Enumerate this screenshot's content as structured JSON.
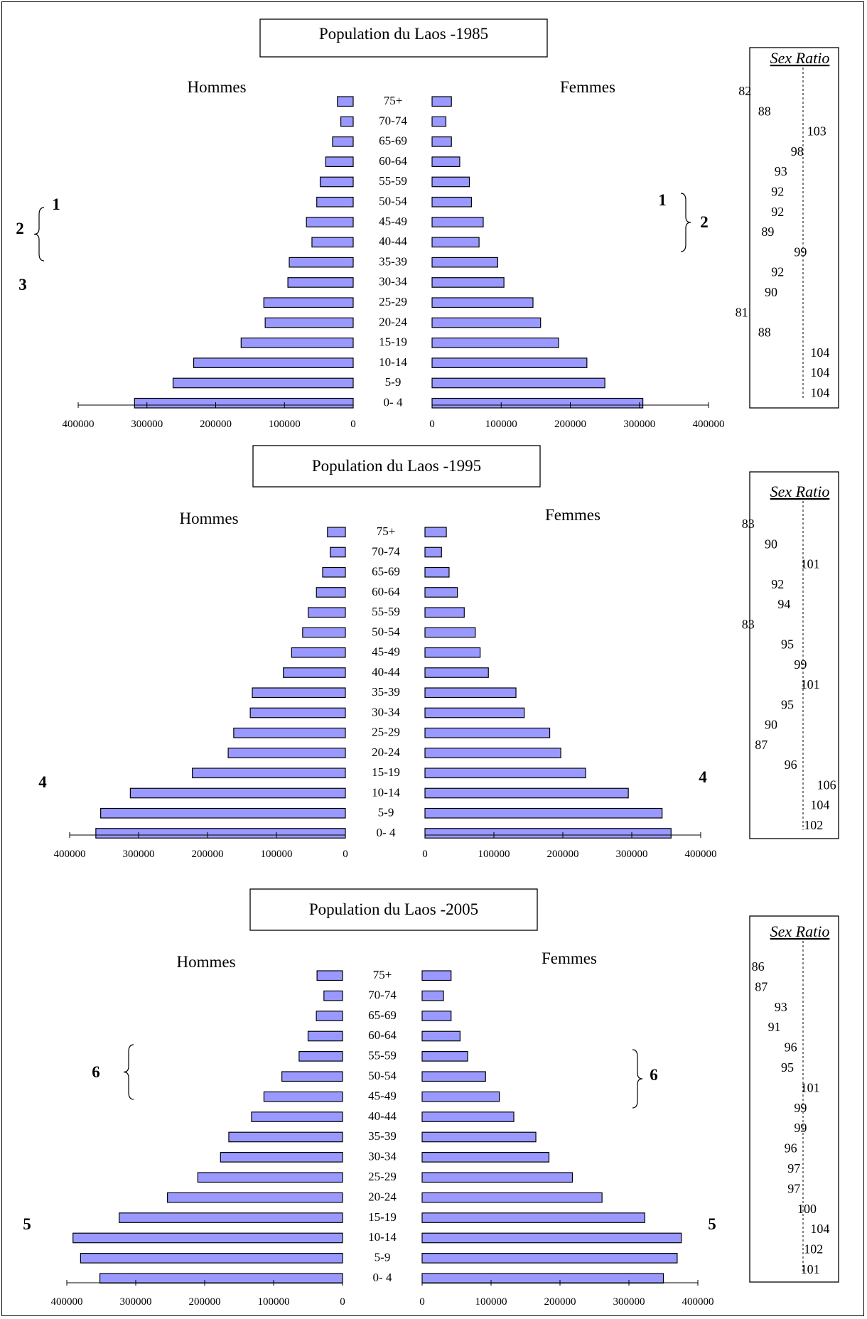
{
  "age_groups": [
    "75+",
    "70-74",
    "65-69",
    "60-64",
    "55-59",
    "50-54",
    "45-49",
    "40-44",
    "35-39",
    "30-34",
    "25-29",
    "20-24",
    "15-19",
    "10-14",
    "5-9",
    "0- 4"
  ],
  "labels": {
    "men": "Hommes",
    "women": "Femmes",
    "sex_ratio": "Sex Ratio"
  },
  "axis": {
    "max": 400000,
    "ticks_men": [
      "400000",
      "300000",
      "200000",
      "100000",
      "0"
    ],
    "ticks_women": [
      "0",
      "100000",
      "200000",
      "300000",
      "400000"
    ]
  },
  "chart_data": [
    {
      "type": "bar",
      "title": "Population du Laos -1985",
      "categories": [
        "75+",
        "70-74",
        "65-69",
        "60-64",
        "55-59",
        "50-54",
        "45-49",
        "40-44",
        "35-39",
        "30-34",
        "25-29",
        "20-24",
        "15-19",
        "10-14",
        "5-9",
        "0- 4"
      ],
      "series": [
        {
          "name": "Hommes",
          "values": [
            23000,
            18000,
            30000,
            40000,
            48000,
            53000,
            68000,
            60000,
            93000,
            95000,
            130000,
            128000,
            163000,
            232000,
            262000,
            318000
          ]
        },
        {
          "name": "Femmes",
          "values": [
            28000,
            20000,
            28000,
            40000,
            54000,
            57000,
            74000,
            68000,
            95000,
            104000,
            146000,
            157000,
            183000,
            224000,
            250000,
            305000
          ]
        }
      ],
      "xlim": [
        0,
        400000
      ],
      "sex_ratio": [
        82,
        88,
        103,
        98,
        93,
        92,
        92,
        89,
        99,
        92,
        90,
        81,
        88,
        104,
        104,
        104
      ],
      "annotations": {
        "left": [
          "1",
          "2",
          "3"
        ],
        "right": [
          "1",
          "2"
        ]
      }
    },
    {
      "type": "bar",
      "title": "Population du Laos -1995",
      "categories": [
        "75+",
        "70-74",
        "65-69",
        "60-64",
        "55-59",
        "50-54",
        "45-49",
        "40-44",
        "35-39",
        "30-34",
        "25-29",
        "20-24",
        "15-19",
        "10-14",
        "5-9",
        "0- 4"
      ],
      "series": [
        {
          "name": "Hommes",
          "values": [
            26000,
            22000,
            33000,
            42000,
            54000,
            62000,
            78000,
            90000,
            135000,
            138000,
            162000,
            170000,
            222000,
            312000,
            355000,
            362000
          ]
        },
        {
          "name": "Femmes",
          "values": [
            31000,
            24000,
            35000,
            47000,
            57000,
            73000,
            80000,
            92000,
            132000,
            144000,
            181000,
            197000,
            233000,
            295000,
            344000,
            357000
          ]
        }
      ],
      "xlim": [
        0,
        400000
      ],
      "sex_ratio": [
        83,
        90,
        101,
        92,
        94,
        83,
        95,
        99,
        101,
        95,
        90,
        87,
        96,
        106,
        104,
        102
      ],
      "annotations": {
        "left": [
          "4"
        ],
        "right": [
          "4"
        ]
      }
    },
    {
      "type": "bar",
      "title": "Population du Laos -2005",
      "categories": [
        "75+",
        "70-74",
        "65-69",
        "60-64",
        "55-59",
        "50-54",
        "45-49",
        "40-44",
        "35-39",
        "30-34",
        "25-29",
        "20-24",
        "15-19",
        "10-14",
        "5-9",
        "0- 4"
      ],
      "series": [
        {
          "name": "Hommes",
          "values": [
            37000,
            27000,
            38000,
            50000,
            63000,
            88000,
            114000,
            132000,
            165000,
            177000,
            210000,
            254000,
            324000,
            391000,
            380000,
            352000
          ]
        },
        {
          "name": "Femmes",
          "values": [
            42000,
            31000,
            42000,
            55000,
            66000,
            92000,
            112000,
            133000,
            165000,
            184000,
            218000,
            261000,
            323000,
            376000,
            370000,
            350000
          ]
        }
      ],
      "xlim": [
        0,
        400000
      ],
      "sex_ratio": [
        86,
        87,
        93,
        91,
        96,
        95,
        101,
        99,
        99,
        96,
        97,
        97,
        100,
        104,
        102,
        101
      ],
      "annotations": {
        "left": [
          "6",
          "5"
        ],
        "right": [
          "6",
          "5"
        ]
      }
    }
  ]
}
